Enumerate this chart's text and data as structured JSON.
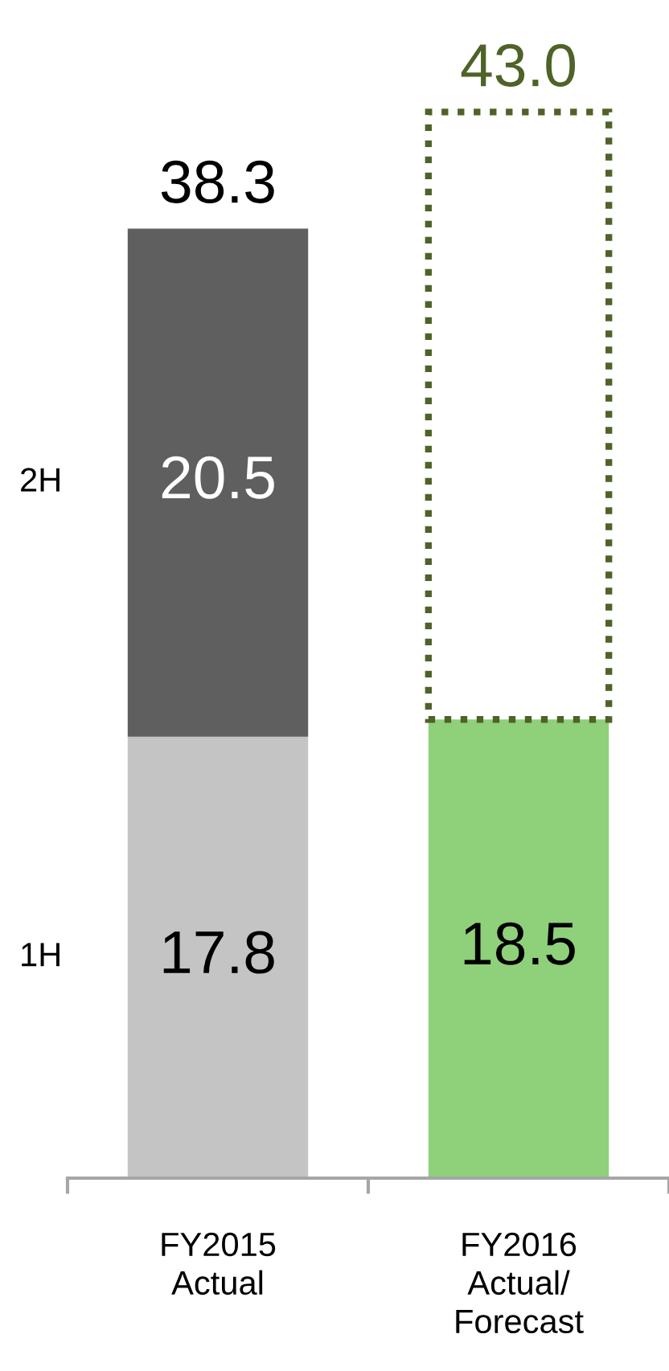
{
  "chart_data": {
    "type": "bar",
    "stacked": true,
    "categories": [
      "FY2015\nActual",
      "FY2016\nActual/\nForecast"
    ],
    "series": [
      {
        "name": "1H",
        "colors": [
          "#c4c4c4",
          "#8fd07a"
        ],
        "values": [
          17.8,
          18.5
        ],
        "value_labels": [
          "17.8",
          "18.5"
        ]
      },
      {
        "name": "2H",
        "color": "#5f5f5f",
        "values": [
          20.5,
          null
        ],
        "value_labels": [
          "20.5",
          null
        ]
      },
      {
        "color": "#4f6228",
        "values": [
          null,
          24.5
        ],
        "line_style": "dotted"
      }
    ],
    "totals": [
      "38.3",
      "43.0"
    ]
  }
}
